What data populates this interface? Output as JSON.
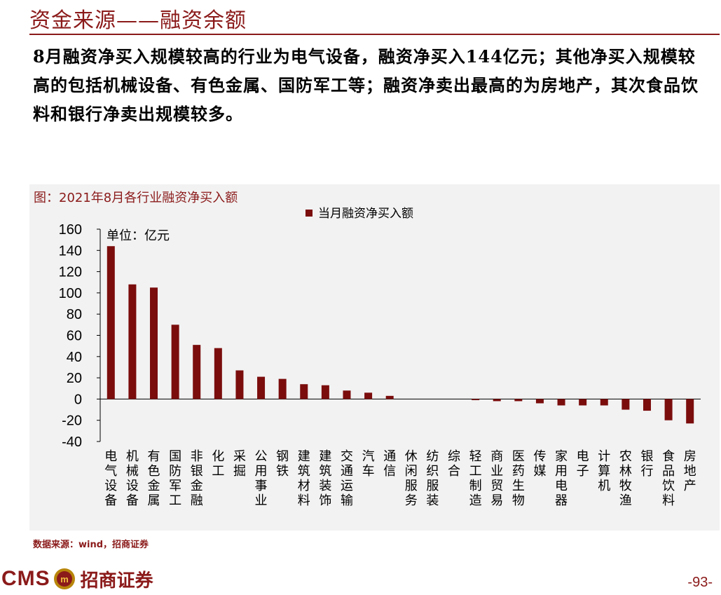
{
  "header": {
    "title": "资金来源——融资余额",
    "summary": "8月融资净买入规模较高的行业为电气设备，融资净买入144亿元；其他净买入规模较高的包括机械设备、有色金属、国防军工等；融资净卖出最高的为房地产，其次食品饮料和银行净卖出规模较多。"
  },
  "chart_caption": "图：2021年8月各行业融资净买入额",
  "chart_data": {
    "type": "bar",
    "unit_label": "单位：亿元",
    "legend": "当月融资净买入额",
    "legend_position": "top-right",
    "ylim": [
      -40,
      160
    ],
    "yticks": [
      160,
      140,
      120,
      100,
      80,
      60,
      40,
      20,
      0,
      -20,
      -40
    ],
    "grid": false,
    "categories": [
      "电气设备",
      "机械设备",
      "有色金属",
      "国防军工",
      "非银金融",
      "化工",
      "采掘",
      "公用事业",
      "钢铁",
      "建筑材料",
      "建筑装饰",
      "交通运输",
      "汽车",
      "通信",
      "休闲服务",
      "纺织服装",
      "综合",
      "轻工制造",
      "商业贸易",
      "医药生物",
      "传媒",
      "家用电器",
      "电子",
      "计算机",
      "农林牧渔",
      "银行",
      "食品饮料",
      "房地产"
    ],
    "series": [
      {
        "name": "当月融资净买入额",
        "color": "#7B0D0D",
        "values": [
          144,
          108,
          105,
          70,
          51,
          48,
          27,
          21,
          19,
          14,
          13,
          8,
          6,
          3,
          0,
          0,
          0,
          -1,
          -2,
          -2,
          -4,
          -6,
          -6,
          -6,
          -10,
          -11,
          -20,
          -23
        ]
      }
    ]
  },
  "source_note": "数据来源：wind，招商证券",
  "footer": {
    "logo_text": "CMS",
    "logo_icon": "cms-shield-logo-icon",
    "company": "招商证券",
    "page_number": "-93-"
  }
}
